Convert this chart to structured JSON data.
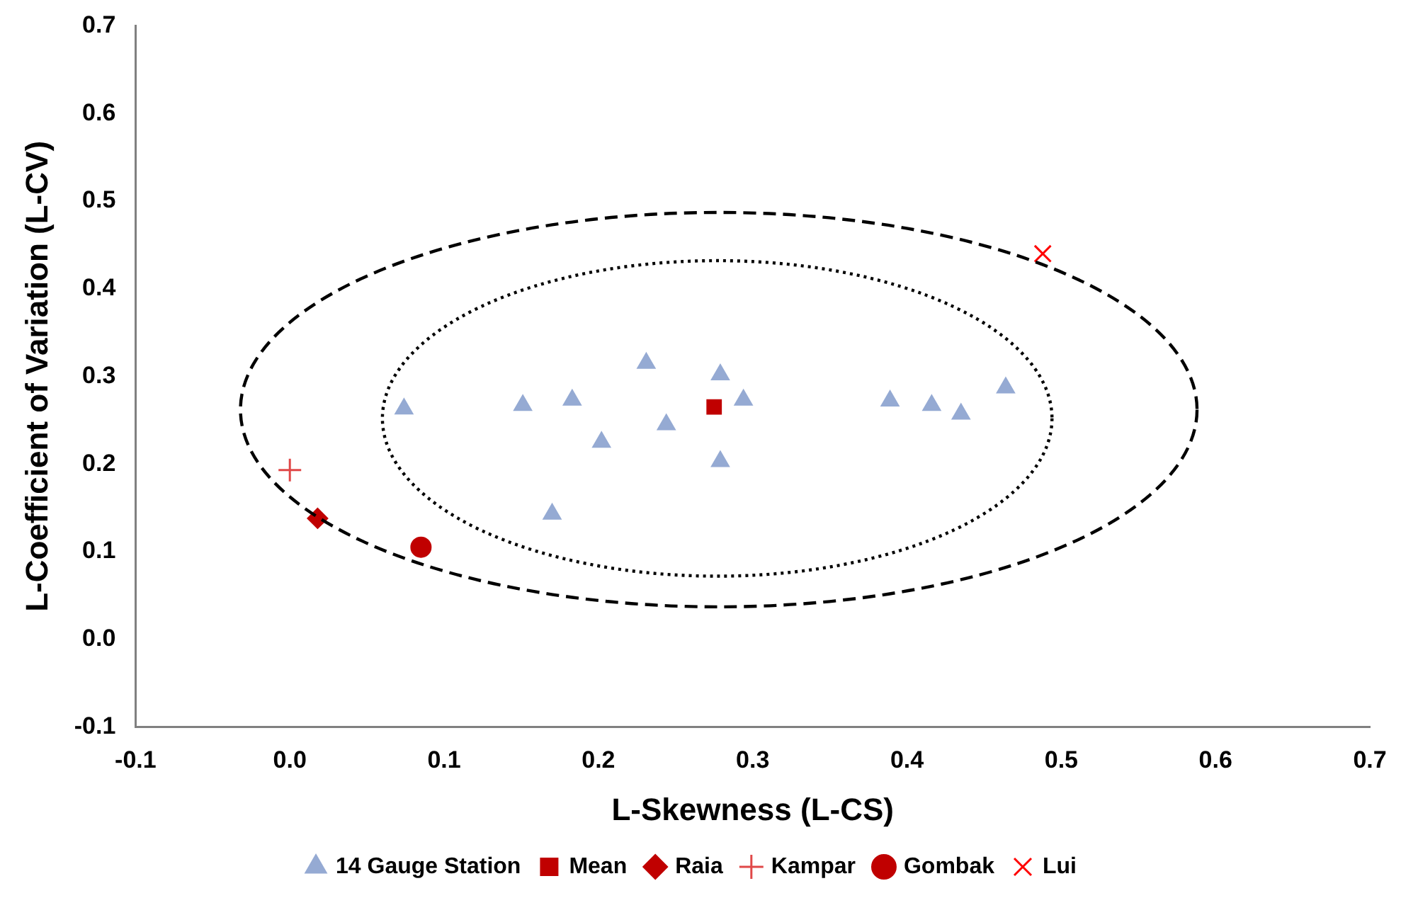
{
  "chart_data": {
    "type": "scatter",
    "xlabel": "L-Skewness (L-CS)",
    "ylabel": "L-Coefficient of Variation (L-CV)",
    "xlim": [
      -0.1,
      0.7
    ],
    "xticks": [
      -0.1,
      {
        "value": 0,
        "label": "0.0"
      },
      0.1,
      0.2,
      0.3,
      0.4,
      0.5,
      0.6,
      0.7
    ],
    "ylim": [
      -0.1,
      0.7
    ],
    "yticks": [
      -0.1,
      {
        "value": 0,
        "label": "0.0"
      },
      0.1,
      0.2,
      0.3,
      0.4,
      0.5,
      0.6,
      0.7
    ],
    "grid": false,
    "legend": "bottom",
    "series": [
      {
        "name": "14 Gauge Station",
        "color": "#95aad3",
        "marker": "triangle",
        "x": [
          0.074,
          0.151,
          0.183,
          0.202,
          0.231,
          0.244,
          0.17,
          0.279,
          0.294,
          0.279,
          0.389,
          0.416,
          0.435,
          0.464
        ],
        "values": [
          0.263,
          0.267,
          0.273,
          0.225,
          0.315,
          0.245,
          0.143,
          0.302,
          0.273,
          0.203,
          0.272,
          0.267,
          0.257,
          0.287
        ]
      },
      {
        "name": "Mean",
        "color": "#c00000",
        "marker": "square",
        "x": [
          0.275
        ],
        "values": [
          0.265
        ]
      },
      {
        "name": "Raia",
        "color": "#c00000",
        "marker": "diamond",
        "x": [
          0.018
        ],
        "values": [
          0.138
        ]
      },
      {
        "name": "Kampar",
        "color": "#e04848",
        "marker": "cross",
        "x": [
          0.0
        ],
        "values": [
          0.193
        ]
      },
      {
        "name": "Gombak",
        "color": "#c00000",
        "marker": "circle",
        "x": [
          0.085
        ],
        "values": [
          0.105
        ]
      },
      {
        "name": "Lui",
        "color": "#ff0000",
        "marker": "x",
        "x": [
          0.488
        ],
        "values": [
          0.44
        ]
      }
    ]
  }
}
